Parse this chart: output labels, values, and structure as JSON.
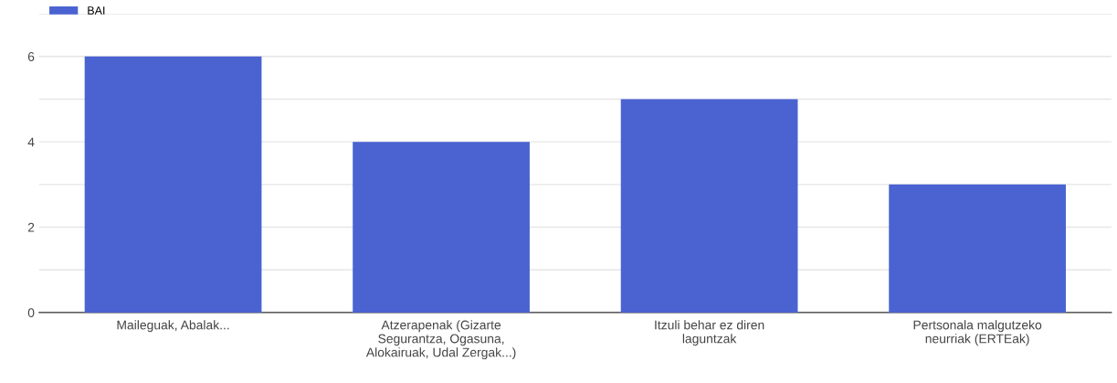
{
  "chart_data": {
    "type": "bar",
    "categories": [
      "Maileguak, Abalak...",
      "Atzerapenak (Gizarte\nSegurantza, Ogasuna,\nAlokairuak, Udal Zergak...)",
      "Itzuli behar ez diren\nlaguntzak",
      "Pertsonala malgutzeko\nneurriak (ERTEak)"
    ],
    "series": [
      {
        "name": "BAI",
        "color": "#4a63d1",
        "values": [
          6,
          4,
          5,
          3
        ]
      }
    ],
    "ylim": [
      0,
      7
    ],
    "yticks": [
      0,
      {
        "value": 1,
        "label": null
      },
      2,
      {
        "value": 3,
        "label": null
      },
      4,
      {
        "value": 5,
        "label": null
      },
      6,
      {
        "value": 7,
        "label": null
      }
    ],
    "grid": "y",
    "legend": "top left"
  }
}
